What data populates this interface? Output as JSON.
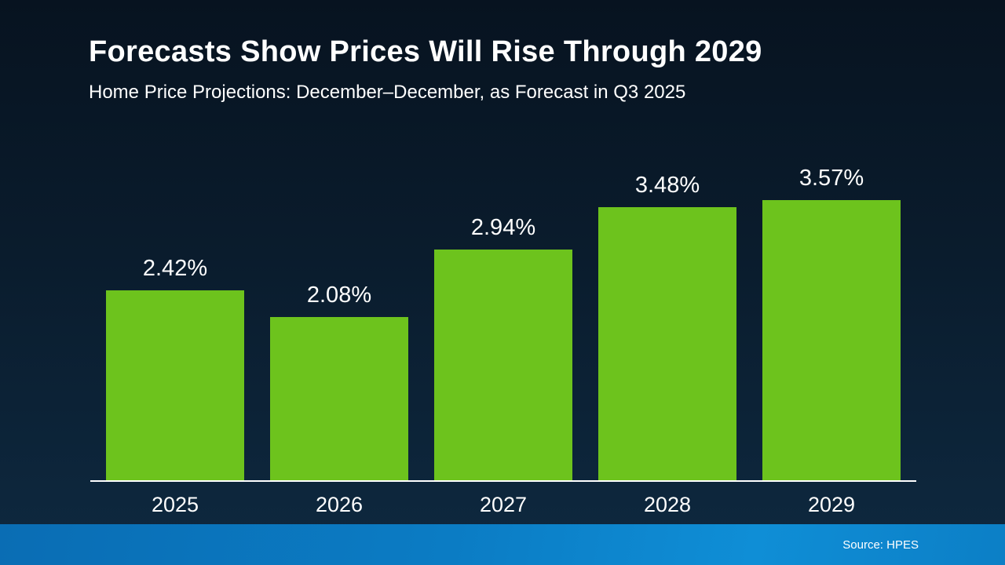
{
  "slide": {
    "title": "Forecasts Show Prices Will Rise Through 2029",
    "subtitle": "Home Price Projections: December–December, as Forecast in Q3 2025",
    "source": "Source: HPES"
  },
  "colors": {
    "background_top": "#071320",
    "background_bottom": "#0e2940",
    "bar_green": "#6dc31d",
    "footer_blue": "#0b7cc4",
    "text": "#ffffff"
  },
  "chart_data": {
    "type": "bar",
    "title": "Forecasts Show Prices Will Rise Through 2029",
    "subtitle": "Home Price Projections: December–December, as Forecast in Q3 2025",
    "categories": [
      "2025",
      "2026",
      "2027",
      "2028",
      "2029"
    ],
    "values": [
      2.42,
      2.08,
      2.94,
      3.48,
      3.57
    ],
    "labels": [
      "2.42%",
      "2.08%",
      "2.94%",
      "3.48%",
      "3.57%"
    ],
    "xlabel": "",
    "ylabel": "",
    "ylim": [
      0,
      4
    ],
    "grid": false,
    "legend": false,
    "bar_color": "#6dc31d",
    "value_label_position": "above",
    "source": "Source: HPES"
  }
}
